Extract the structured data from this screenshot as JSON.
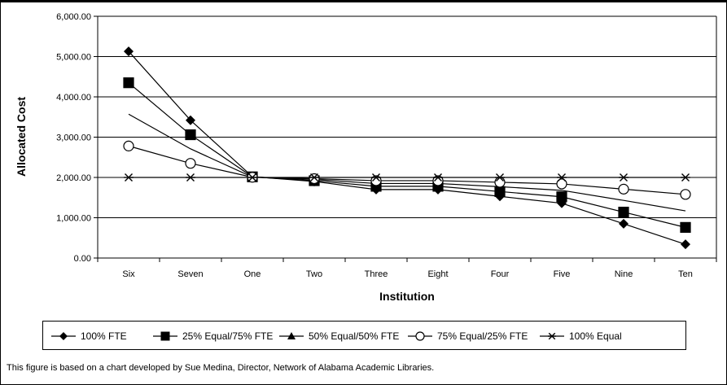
{
  "chart_data": {
    "type": "line",
    "title": "",
    "xlabel": "Institution",
    "ylabel": "Allocated Cost",
    "ylim": [
      0,
      6000
    ],
    "yticks": [
      "0.00",
      "1,000.00",
      "2,000.00",
      "3,000.00",
      "4,000.00",
      "5,000.00",
      "6,000.00"
    ],
    "grid": "horizontal",
    "legend_position": "bottom",
    "categories": [
      "Six",
      "Seven",
      "One",
      "Two",
      "Three",
      "Eight",
      "Four",
      "Five",
      "Nine",
      "Ten"
    ],
    "series": [
      {
        "name": "100% FTE",
        "marker": "diamond",
        "values": [
          5130,
          3420,
          2020,
          1900,
          1700,
          1700,
          1530,
          1360,
          850,
          340
        ]
      },
      {
        "name": "25% Equal/75% FTE",
        "marker": "square",
        "values": [
          4350,
          3060,
          2015,
          1920,
          1780,
          1780,
          1650,
          1520,
          1140,
          760
        ]
      },
      {
        "name": "50% Equal/50% FTE",
        "marker": "triangle",
        "values": [
          3570,
          2710,
          2010,
          1950,
          1850,
          1850,
          1770,
          1680,
          1430,
          1170
        ]
      },
      {
        "name": "75% Equal/25% FTE",
        "marker": "circle-open",
        "values": [
          2780,
          2350,
          2005,
          1970,
          1920,
          1920,
          1880,
          1840,
          1710,
          1580
        ]
      },
      {
        "name": "100% Equal",
        "marker": "asterisk",
        "values": [
          2000,
          2000,
          2000,
          2000,
          2000,
          2000,
          2000,
          2000,
          2000,
          2000
        ]
      }
    ]
  },
  "footnote": "This figure is based on a chart developed by Sue Medina, Director, Network of Alabama Academic Libraries."
}
